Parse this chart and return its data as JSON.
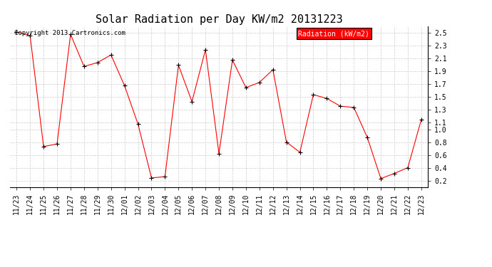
{
  "title": "Solar Radiation per Day KW/m2 20131223",
  "legend_label": "Radiation (kW/m2)",
  "dates": [
    "11/23",
    "11/24",
    "11/25",
    "11/26",
    "11/27",
    "11/28",
    "11/29",
    "11/30",
    "12/01",
    "12/02",
    "12/03",
    "12/04",
    "12/05",
    "12/06",
    "12/07",
    "12/08",
    "12/09",
    "12/10",
    "12/11",
    "12/12",
    "12/13",
    "12/14",
    "12/15",
    "12/16",
    "12/17",
    "12/18",
    "12/19",
    "12/20",
    "12/21",
    "12/22",
    "12/23"
  ],
  "values": [
    2.52,
    2.46,
    0.73,
    0.77,
    2.48,
    1.98,
    2.04,
    2.16,
    1.68,
    1.08,
    0.24,
    0.26,
    2.0,
    1.43,
    2.24,
    0.62,
    2.08,
    1.65,
    1.73,
    1.93,
    0.8,
    0.64,
    1.54,
    1.48,
    1.36,
    1.34,
    0.87,
    0.23,
    0.31,
    0.4,
    1.15
  ],
  "line_color": "#ff0000",
  "marker_color": "#000000",
  "background_color": "#ffffff",
  "grid_color": "#cccccc",
  "ylim": [
    0.1,
    2.6
  ],
  "yticks": [
    0.2,
    0.4,
    0.6,
    0.8,
    1.0,
    1.1,
    1.3,
    1.5,
    1.7,
    1.9,
    2.1,
    2.3,
    2.5
  ],
  "copyright_text": "Copyright 2013 Cartronics.com",
  "title_fontsize": 11,
  "tick_fontsize": 7,
  "legend_bg": "#ff0000",
  "legend_text_color": "#ffffff"
}
